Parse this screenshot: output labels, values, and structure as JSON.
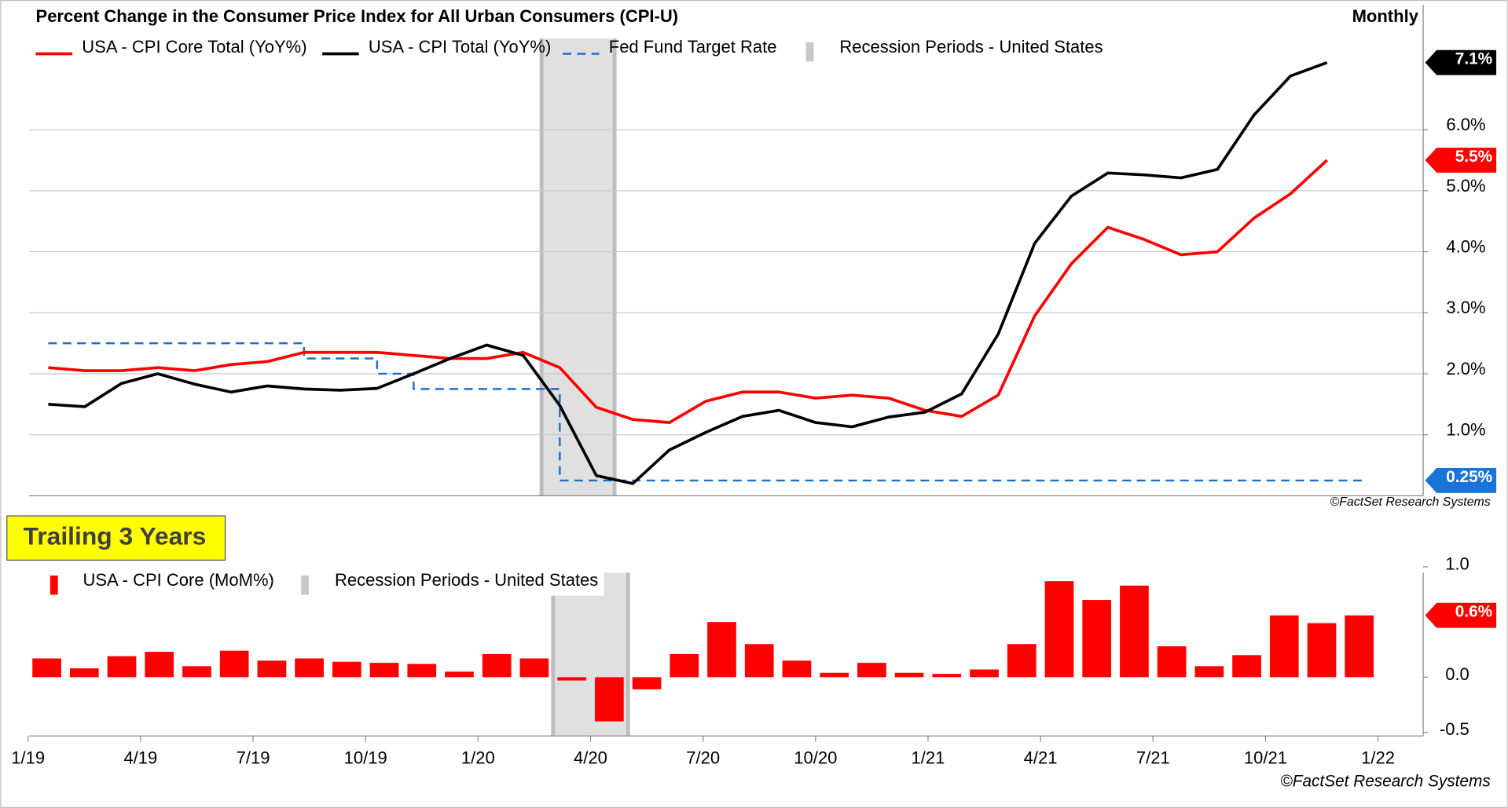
{
  "chart_data": [
    {
      "type": "line",
      "title": "Percent Change in the Consumer Price Index for All Urban Consumers (CPI-U)",
      "subtitle": "Monthly",
      "x": [
        "1/19",
        "2/19",
        "3/19",
        "4/19",
        "5/19",
        "6/19",
        "7/19",
        "8/19",
        "9/19",
        "10/19",
        "11/19",
        "12/19",
        "1/20",
        "2/20",
        "3/20",
        "4/20",
        "5/20",
        "6/20",
        "7/20",
        "8/20",
        "9/20",
        "10/20",
        "11/20",
        "12/20",
        "1/21",
        "2/21",
        "3/21",
        "4/21",
        "5/21",
        "6/21",
        "7/21",
        "8/21",
        "9/21",
        "10/21",
        "11/21",
        "12/21"
      ],
      "series": [
        {
          "name": "USA - CPI Core Total (YoY%)",
          "color": "#ff0000",
          "values": [
            2.1,
            2.05,
            2.05,
            2.1,
            2.05,
            2.15,
            2.2,
            2.35,
            2.35,
            2.35,
            2.3,
            2.25,
            2.25,
            2.35,
            2.1,
            1.45,
            1.25,
            1.2,
            1.55,
            1.7,
            1.7,
            1.6,
            1.65,
            1.6,
            1.4,
            1.3,
            1.65,
            2.95,
            3.8,
            4.4,
            4.2,
            3.95,
            4.0,
            4.55,
            4.95,
            5.5
          ],
          "value_labels": [
            null,
            null,
            null,
            null,
            null,
            null,
            null,
            null,
            null,
            null,
            null,
            null,
            null,
            null,
            null,
            null,
            null,
            null,
            null,
            null,
            null,
            null,
            null,
            null,
            null,
            null,
            null,
            null,
            null,
            null,
            null,
            null,
            null,
            null,
            null,
            "5.5%"
          ]
        },
        {
          "name": "USA - CPI Total (YoY%)",
          "color": "#000000",
          "values": [
            1.5,
            1.46,
            1.84,
            2.0,
            1.83,
            1.7,
            1.8,
            1.75,
            1.73,
            1.76,
            2.0,
            2.25,
            2.47,
            2.3,
            1.48,
            0.33,
            0.2,
            0.75,
            1.04,
            1.3,
            1.4,
            1.2,
            1.13,
            1.29,
            1.37,
            1.67,
            2.65,
            4.14,
            4.91,
            5.29,
            5.26,
            5.21,
            5.35,
            6.24,
            6.88,
            7.1
          ],
          "value_labels": [
            null,
            null,
            null,
            null,
            null,
            null,
            null,
            null,
            null,
            null,
            null,
            null,
            null,
            null,
            null,
            null,
            null,
            null,
            null,
            null,
            null,
            null,
            null,
            null,
            null,
            null,
            null,
            null,
            null,
            null,
            null,
            null,
            null,
            null,
            null,
            "7.1%"
          ]
        },
        {
          "name": "Fed Fund Target Rate",
          "color": "#1f6fc5",
          "style": "dashed",
          "step": true,
          "values": [
            2.5,
            2.5,
            2.5,
            2.5,
            2.5,
            2.5,
            2.5,
            2.25,
            2.25,
            2.0,
            1.75,
            1.75,
            1.75,
            1.75,
            0.25,
            0.25,
            0.25,
            0.25,
            0.25,
            0.25,
            0.25,
            0.25,
            0.25,
            0.25,
            0.25,
            0.25,
            0.25,
            0.25,
            0.25,
            0.25,
            0.25,
            0.25,
            0.25,
            0.25,
            0.25,
            0.25
          ],
          "value_labels": [
            null,
            null,
            null,
            null,
            null,
            null,
            null,
            null,
            null,
            null,
            null,
            null,
            null,
            null,
            null,
            null,
            null,
            null,
            null,
            null,
            null,
            null,
            null,
            null,
            null,
            null,
            null,
            null,
            null,
            null,
            null,
            null,
            null,
            null,
            null,
            "0.25%"
          ]
        }
      ],
      "recession": {
        "name": "Recession Periods - United States",
        "color": "#e0e0e0",
        "start": "3/20",
        "end": "4/20"
      },
      "ylim": [
        0,
        8
      ],
      "yticks": [
        {
          "value": 1,
          "label": "1.0%"
        },
        {
          "value": 2,
          "label": "2.0%"
        },
        {
          "value": 3,
          "label": "3.0%"
        },
        {
          "value": 4,
          "label": "4.0%"
        },
        {
          "value": 5,
          "label": "5.0%"
        },
        {
          "value": 6,
          "label": "6.0%"
        }
      ],
      "grid": true,
      "source": "©FactSet Research Systems"
    },
    {
      "type": "bar",
      "x": [
        "1/19",
        "2/19",
        "3/19",
        "4/19",
        "5/19",
        "6/19",
        "7/19",
        "8/19",
        "9/19",
        "10/19",
        "11/19",
        "12/19",
        "1/20",
        "2/20",
        "3/20",
        "4/20",
        "5/20",
        "6/20",
        "7/20",
        "8/20",
        "9/20",
        "10/20",
        "11/20",
        "12/20",
        "1/21",
        "2/21",
        "3/21",
        "4/21",
        "5/21",
        "6/21",
        "7/21",
        "8/21",
        "9/21",
        "10/21",
        "11/21",
        "12/21"
      ],
      "series": [
        {
          "name": "USA - CPI Core (MoM%)",
          "color": "#ff0000",
          "values": [
            0.17,
            0.08,
            0.19,
            0.23,
            0.1,
            0.24,
            0.15,
            0.17,
            0.14,
            0.13,
            0.12,
            0.05,
            0.21,
            0.17,
            -0.03,
            -0.4,
            -0.11,
            0.21,
            0.5,
            0.3,
            0.15,
            0.04,
            0.13,
            0.04,
            0.03,
            0.07,
            0.3,
            0.87,
            0.7,
            0.83,
            0.28,
            0.1,
            0.2,
            0.56,
            0.49,
            0.56
          ],
          "value_labels": [
            null,
            null,
            null,
            null,
            null,
            null,
            null,
            null,
            null,
            null,
            null,
            null,
            null,
            null,
            null,
            null,
            null,
            null,
            null,
            null,
            null,
            null,
            null,
            null,
            null,
            null,
            null,
            null,
            null,
            null,
            null,
            null,
            null,
            null,
            null,
            "0.6%"
          ]
        }
      ],
      "recession": {
        "name": "Recession Periods - United States",
        "color": "#e0e0e0",
        "start": "3/20",
        "end": "4/20"
      },
      "ylim": [
        -0.55,
        1.0
      ],
      "yticks": [
        {
          "value": -0.5,
          "label": "-0.5"
        },
        {
          "value": 0,
          "label": "0.0"
        },
        {
          "value": 1,
          "label": "1.0"
        }
      ],
      "xticks": [
        "1/19",
        "4/19",
        "7/19",
        "10/19",
        "1/20",
        "4/20",
        "7/20",
        "10/20",
        "1/21",
        "4/21",
        "7/21",
        "10/21",
        "1/22"
      ],
      "grid": false,
      "source": "©FactSet Research Systems"
    }
  ],
  "banner": "Trailing 3 Years"
}
